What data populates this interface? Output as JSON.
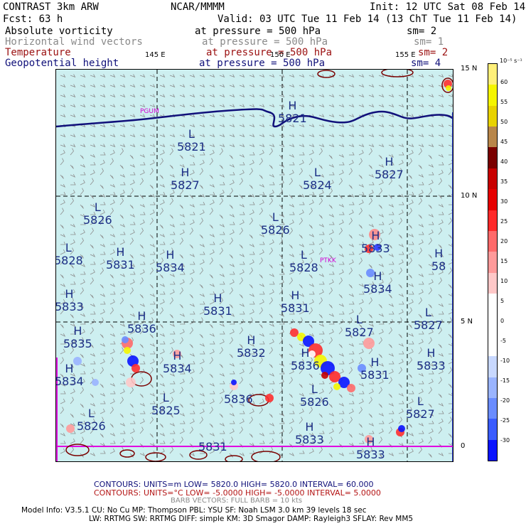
{
  "header": {
    "model_name": "CONTRAST  3km ARW",
    "center": "NCAR/MMMM",
    "init": "Init: 12 UTC Sat 08 Feb 14",
    "fcst": "Fcst:    63 h",
    "valid": "Valid: 03 UTC Tue 11 Feb 14 (13 ChT Tue 11 Feb 14)",
    "fields": [
      {
        "name": "Absolute vorticity",
        "level": "at pressure =  500 hPa",
        "sm": "sm= 2",
        "color": "#000000"
      },
      {
        "name": "Horizontal wind vectors",
        "level": "at pressure =  500 hPa",
        "sm": "sm= 1",
        "color": "#8a8a8a"
      },
      {
        "name": "Temperature",
        "level": "at pressure =  500 hPa",
        "sm": "sm= 2",
        "color": "#9b1010"
      },
      {
        "name": "Geopotential height",
        "level": "at pressure =  500 hPa",
        "sm": "sm= 4",
        "color": "#10107a"
      }
    ]
  },
  "map": {
    "lon_labels": [
      "145 E",
      "150 E",
      "155 E"
    ],
    "lat_labels": [
      "15 N",
      "10 N",
      "5 N",
      "0"
    ],
    "stations": [
      {
        "name": "PGUM"
      },
      {
        "name": "PTKK"
      }
    ],
    "height_labels": [
      {
        "type": "H",
        "value": "5821"
      },
      {
        "type": "L",
        "value": "5821"
      },
      {
        "type": "H",
        "value": "5827"
      },
      {
        "type": "L",
        "value": "5824"
      },
      {
        "type": "H",
        "value": "5827"
      },
      {
        "type": "L",
        "value": "5826"
      },
      {
        "type": "L",
        "value": "5826"
      },
      {
        "type": "H",
        "value": "5833"
      },
      {
        "type": "L",
        "value": "5828"
      },
      {
        "type": "H",
        "value": "5831"
      },
      {
        "type": "H",
        "value": "5834"
      },
      {
        "type": "L",
        "value": "5828"
      },
      {
        "type": "H",
        "value": "58"
      },
      {
        "type": "H",
        "value": "5833"
      },
      {
        "type": "H",
        "value": "5834"
      },
      {
        "type": "H",
        "value": "5831"
      },
      {
        "type": "H",
        "value": "5831"
      },
      {
        "type": "H",
        "value": "5836"
      },
      {
        "type": "L",
        "value": "5827"
      },
      {
        "type": "L",
        "value": "5827"
      },
      {
        "type": "H",
        "value": "5835"
      },
      {
        "type": "H",
        "value": "5832"
      },
      {
        "type": "H",
        "value": "5834"
      },
      {
        "type": "H",
        "value": "5834"
      },
      {
        "type": "H",
        "value": "5836"
      },
      {
        "type": "H",
        "value": "5831"
      },
      {
        "type": "H",
        "value": "5833"
      },
      {
        "type": "L",
        "value": "5825"
      },
      {
        "type": "",
        "value": "5836"
      },
      {
        "type": "L",
        "value": "5826"
      },
      {
        "type": "L",
        "value": "5827"
      },
      {
        "type": "L",
        "value": "5826"
      },
      {
        "type": "H",
        "value": "5833"
      },
      {
        "type": "H",
        "value": "5833"
      },
      {
        "type": "",
        "value": "5831"
      }
    ]
  },
  "colorbar": {
    "units": "10⁻⁵ s⁻¹",
    "labels": [
      "60",
      "55",
      "50",
      "45",
      "40",
      "35",
      "30",
      "25",
      "20",
      "15",
      "10",
      "5",
      "0",
      "-5",
      "-10",
      "-15",
      "-20",
      "-25",
      "-30"
    ],
    "colors": [
      "#fff07a",
      "#f5f500",
      "#e8d200",
      "#b8864a",
      "#7a0000",
      "#c80000",
      "#e60000",
      "#ff2a2a",
      "#ff6a6a",
      "#ff9a9a",
      "#ffc8c8",
      "#ffffff",
      "#ffffff",
      "#ffffff",
      "#c8d8ff",
      "#9ab4ff",
      "#6a8cff",
      "#3a5cff",
      "#0a14ff"
    ]
  },
  "footer": {
    "contours1_label": "CONTOURS:",
    "contours1": "UNITS=m   LOW=   5820.0       HIGH=   5820.0       INTERVAL=   60.000",
    "contours2_label": "CONTOURS:",
    "contours2": "UNITS=°C   LOW= -5.0000       HIGH= -5.0000       INTERVAL=   5.0000",
    "barb": "BARB VECTORS:  FULL BARB = 10 kts",
    "model_info_1": "Model Info: V3.5.1     CU: No Cu       MP: Thompson      PBL: YSU        SF: Noah LSM      3.0 km   39 levels   18 sec",
    "model_info_2": "LW: RRTMG    SW: RRTMG   DIFF: simple KM: 3D Smagor DAMP: Rayleigh3   SFLAY: Rev MM5"
  },
  "colors": {
    "background": "#cdeff0",
    "height_contour": "#10107a",
    "temperature_contour": "#7a0000",
    "station": "#d200d2"
  }
}
